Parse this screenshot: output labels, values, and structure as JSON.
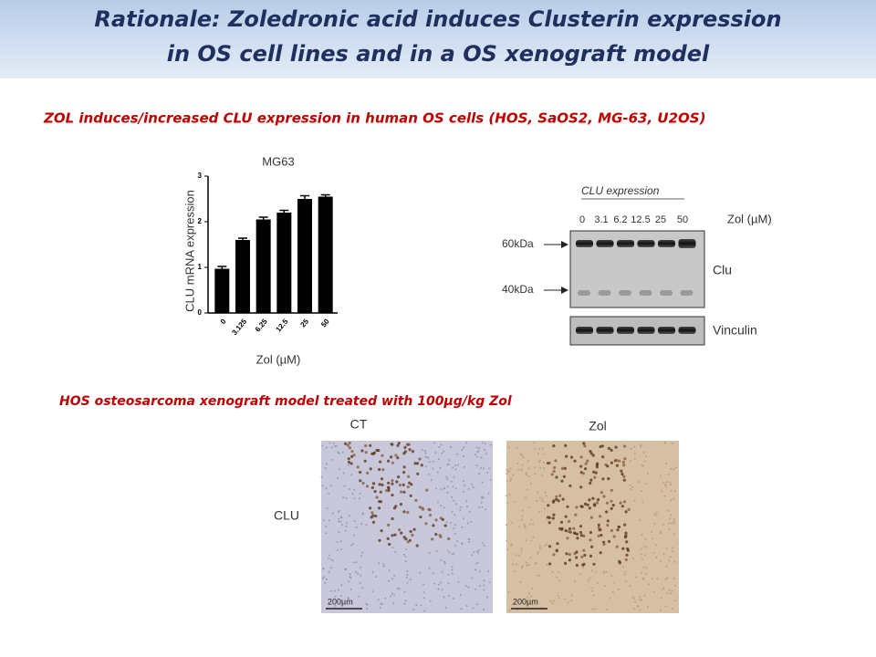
{
  "header": {
    "title_line1": "Rationale: Zoledronic acid induces Clusterin expression",
    "title_line2": "in OS cell lines and in a OS xenograft model"
  },
  "section1": {
    "heading": "ZOL induces/increased  CLU expression in human OS cells (HOS, SaOS2, MG-63, U2OS)"
  },
  "chart_data": {
    "type": "bar",
    "title": "MG63",
    "x_label": "Zol (µM)",
    "y_label": "CLU mRNA expression",
    "categories": [
      "0",
      "3.125",
      "6.25",
      "12.5",
      "25",
      "50"
    ],
    "values": [
      0.97,
      1.6,
      2.05,
      2.2,
      2.5,
      2.55
    ],
    "errors": [
      0.05,
      0.04,
      0.05,
      0.05,
      0.07,
      0.04
    ],
    "color": "#000000",
    "ylim": [
      0,
      3
    ],
    "yticks": [
      0,
      1,
      2,
      3
    ]
  },
  "blot": {
    "title": "CLU expression",
    "lanes": [
      "0",
      "3.1",
      "6.2",
      "12.5",
      "25",
      "50"
    ],
    "treatment": "Zol (µM)",
    "markers": [
      "60kDa",
      "40kDa"
    ],
    "clu_label": "Clu",
    "loading_label": "Vinculin"
  },
  "section2": {
    "heading": "HOS osteosarcoma xenograft model treated with 100µg/kg Zol",
    "columns": [
      "CT",
      "Zol"
    ],
    "row_label": "CLU",
    "scale_bars": [
      "200µm",
      "200µm"
    ]
  }
}
